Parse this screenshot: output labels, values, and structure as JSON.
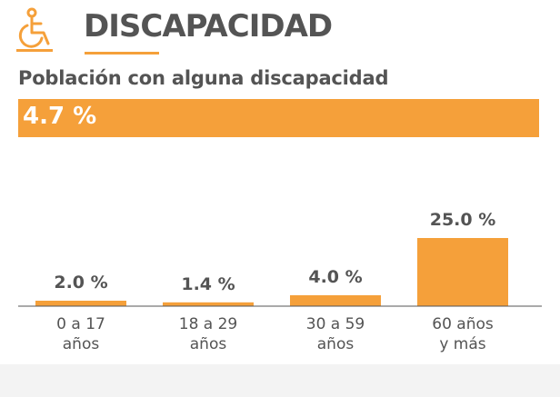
{
  "header": {
    "icon": "wheelchair-icon",
    "title": "DISCAPACIDAD"
  },
  "subtitle": "Población con alguna discapacidad",
  "total": {
    "label": "4.7 %",
    "value": 4.7
  },
  "colors": {
    "accent": "#F5A03A",
    "text": "#545454"
  },
  "chart_data": {
    "type": "bar",
    "categories": [
      [
        "0 a 17",
        "años"
      ],
      [
        "18 a 29",
        "años"
      ],
      [
        "30 a 59",
        "años"
      ],
      [
        "60 años",
        "y más"
      ]
    ],
    "values": [
      2.0,
      1.4,
      4.0,
      25.0
    ],
    "value_labels": [
      "2.0 %",
      "1.4 %",
      "4.0 %",
      "25.0 %"
    ],
    "title": "",
    "xlabel": "",
    "ylabel": "",
    "ylim": [
      0,
      25
    ],
    "grid": false
  }
}
